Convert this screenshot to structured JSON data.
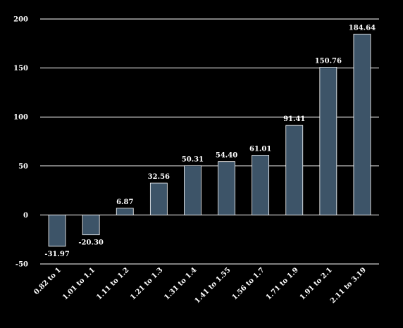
{
  "chart_data": {
    "type": "bar",
    "title": "",
    "xlabel": "",
    "ylabel": "",
    "categories": [
      "0.82 to 1",
      "1.01 to 1.1",
      "1.11 to 1.2",
      "1.21 to 1.3",
      "1.31 to 1.4",
      "1.41 to 1.55",
      "1.56 to 1.7",
      "1.71 to 1.9",
      "1.91 to 2.1",
      "2.11 to 3.19"
    ],
    "values": [
      -31.97,
      -20.3,
      6.87,
      32.56,
      50.31,
      54.4,
      61.01,
      91.41,
      150.76,
      184.64
    ],
    "value_labels": [
      "-31.97",
      "-20.30",
      "6.87",
      "32.56",
      "50.31",
      "54.40",
      "61.01",
      "91.41",
      "150.76",
      "184.64"
    ],
    "ylim": [
      -50,
      200
    ],
    "yticks": [
      "-50",
      "0",
      "50",
      "100",
      "150",
      "200"
    ],
    "grid": true,
    "bar_color": "#3d5468",
    "background": "#000000",
    "text_color": "#ffffff"
  }
}
